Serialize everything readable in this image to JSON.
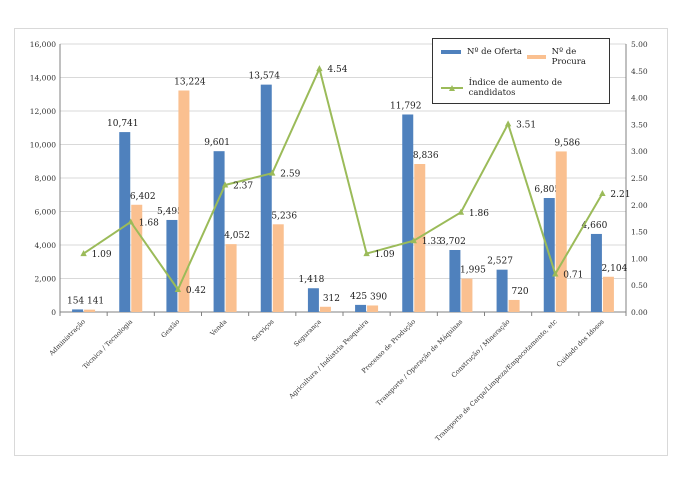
{
  "chart_data": {
    "type": "bar",
    "categories": [
      "Administração",
      "Técnica / Tecnologia",
      "Gestão",
      "Venda",
      "Serviços",
      "Segurança",
      "Agricultura / Indústria Pesqueira",
      "Processo de Produção",
      "Transporte / Operação de Máquinas",
      "Construção / Mineração",
      "Transporte de Carga/Limpeza/Empacotamento, etc",
      "Cuidado dos Idosos"
    ],
    "series": [
      {
        "name": "Nº de Oferta",
        "type": "bar",
        "axis": "left",
        "color": "#4f81bd",
        "values": [
          154,
          10741,
          5495,
          9601,
          13574,
          1418,
          425,
          11792,
          3702,
          2527,
          6805,
          4660
        ],
        "labels": [
          "154",
          "10,741",
          "5,495",
          "9,601",
          "13,574",
          "1,418",
          "425",
          "11,792",
          "3,702",
          "2,527",
          "6,805",
          "4,660"
        ]
      },
      {
        "name": "Nº de Procura",
        "type": "bar",
        "axis": "left",
        "color": "#fac090",
        "values": [
          141,
          6402,
          13224,
          4052,
          5236,
          312,
          390,
          8836,
          1995,
          720,
          9586,
          2104
        ],
        "labels": [
          "141",
          "6,402",
          "13,224",
          "4,052",
          "5,236",
          "312",
          "390",
          "8,836",
          "1,995",
          "720",
          "9,586",
          "2,104"
        ]
      },
      {
        "name": "Índice de aumento de candidatos",
        "type": "line",
        "axis": "right",
        "color": "#9bbb59",
        "values": [
          1.09,
          1.68,
          0.42,
          2.37,
          2.59,
          4.54,
          1.09,
          1.33,
          1.86,
          3.51,
          0.71,
          2.21
        ],
        "labels": [
          "1.09",
          "1.68",
          "0.42",
          "2.37",
          "2.59",
          "4.54",
          "1.09",
          "1.33",
          "1.86",
          "3.51",
          "0.71",
          "2.21"
        ]
      }
    ],
    "ylim_left": [
      0,
      16000
    ],
    "yticks_left": [
      "0",
      "2,000",
      "4,000",
      "6,000",
      "8,000",
      "10,000",
      "12,000",
      "14,000",
      "16,000"
    ],
    "ylim_right": [
      0,
      5
    ],
    "yticks_right": [
      "0.00",
      "0.50",
      "1.00",
      "1.50",
      "2.00",
      "2.50",
      "3.00",
      "3.50",
      "4.00",
      "4.50",
      "5.00"
    ],
    "grid": true,
    "legend_position": "top-right"
  }
}
